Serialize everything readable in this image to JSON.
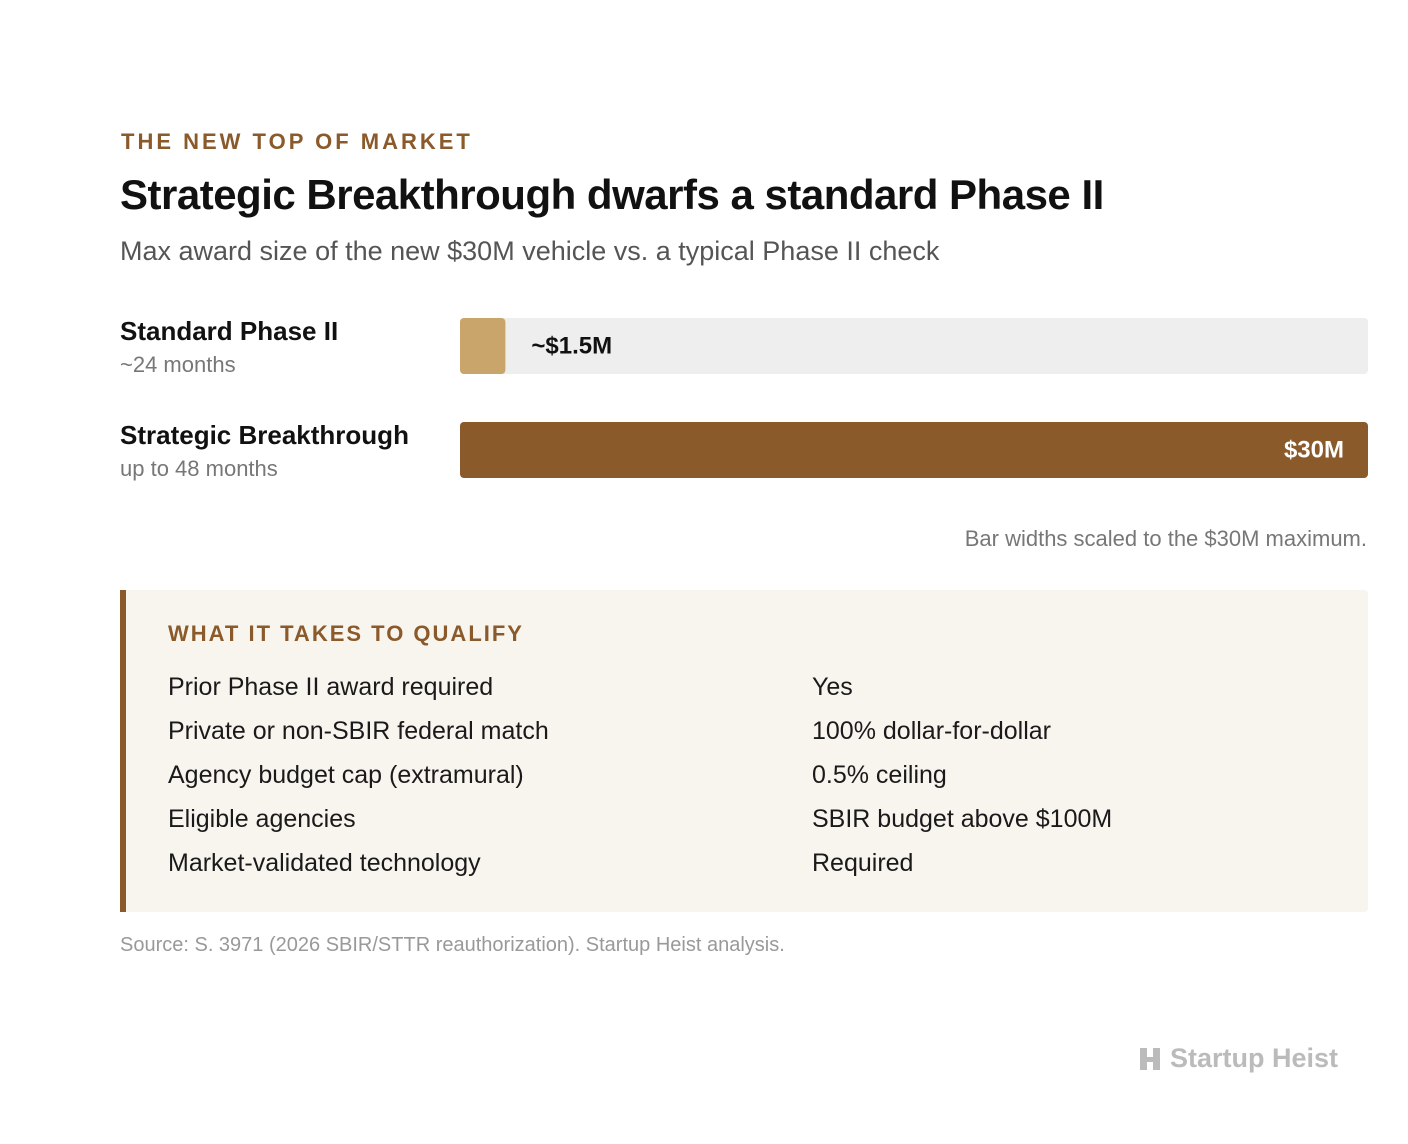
{
  "kicker": "THE NEW TOP OF MARKET",
  "chart_data": {
    "type": "bar",
    "orientation": "horizontal",
    "title": "Strategic Breakthrough dwarfs a standard Phase II",
    "subtitle": "Max award size of the new $30M vehicle vs. a typical Phase II check",
    "categories": [
      "Standard Phase II",
      "Strategic Breakthrough"
    ],
    "sublabels": [
      "~24 months",
      "up to 48 months"
    ],
    "values": [
      1.5,
      30
    ],
    "value_labels": [
      "~$1.5M",
      "$30M"
    ],
    "colors": [
      "#c9a46b",
      "#8a5a2b"
    ],
    "xlim": [
      0,
      30
    ],
    "note": "Bar widths scaled to the $30M maximum."
  },
  "qualify": {
    "title": "WHAT IT TAKES TO QUALIFY",
    "rows": [
      [
        "Prior Phase II award required",
        "Yes"
      ],
      [
        "Private or non-SBIR federal match",
        "100% dollar-for-dollar"
      ],
      [
        "Agency budget cap (extramural)",
        "0.5% ceiling"
      ],
      [
        "Eligible agencies",
        "SBIR budget above $100M"
      ],
      [
        "Market-validated technology",
        "Required"
      ]
    ]
  },
  "source": "Source: S. 3971 (2026 SBIR/STTR reauthorization). Startup Heist analysis.",
  "brand": "Startup Heist"
}
